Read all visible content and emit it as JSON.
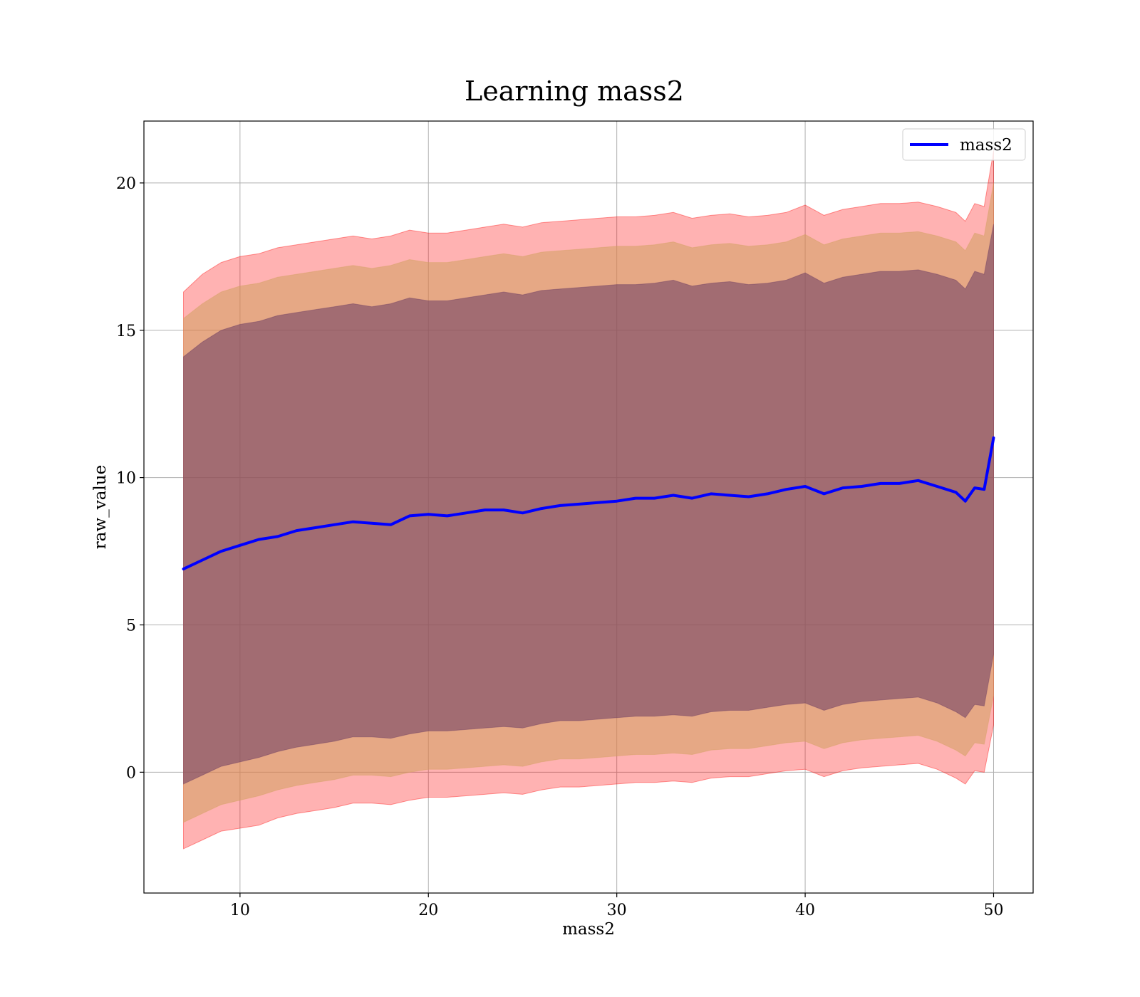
{
  "chart_data": {
    "type": "line",
    "title": "Learning mass2",
    "xlabel": "mass2",
    "ylabel": "raw_value",
    "xlim": [
      4.9,
      52.1
    ],
    "ylim": [
      -4.1,
      22.1
    ],
    "xticks": [
      10,
      20,
      30,
      40,
      50
    ],
    "yticks": [
      0,
      5,
      10,
      15,
      20
    ],
    "grid": true,
    "legend_position": "top-right",
    "x": [
      7,
      8,
      9,
      10,
      11,
      12,
      13,
      14,
      15,
      16,
      17,
      18,
      19,
      20,
      21,
      22,
      23,
      24,
      25,
      26,
      27,
      28,
      29,
      30,
      31,
      32,
      33,
      34,
      35,
      36,
      37,
      38,
      39,
      40,
      41,
      42,
      43,
      44,
      45,
      46,
      47,
      48,
      48.5,
      49,
      49.5,
      50
    ],
    "series": [
      {
        "name": "mass2",
        "color": "#0000ff",
        "values": [
          6.9,
          7.2,
          7.5,
          7.7,
          7.9,
          8.0,
          8.2,
          8.3,
          8.4,
          8.5,
          8.45,
          8.4,
          8.7,
          8.75,
          8.7,
          8.8,
          8.9,
          8.9,
          8.8,
          8.95,
          9.05,
          9.1,
          9.15,
          9.2,
          9.3,
          9.3,
          9.4,
          9.3,
          9.45,
          9.4,
          9.35,
          9.45,
          9.6,
          9.7,
          9.45,
          9.65,
          9.7,
          9.8,
          9.8,
          9.9,
          9.7,
          9.5,
          9.2,
          9.65,
          9.6,
          11.35
        ]
      }
    ],
    "bands": [
      {
        "name": "band-outer",
        "color": "#ff0000",
        "opacity": 0.3,
        "upper": [
          16.3,
          16.9,
          17.3,
          17.5,
          17.6,
          17.8,
          17.9,
          18.0,
          18.1,
          18.2,
          18.1,
          18.2,
          18.4,
          18.3,
          18.3,
          18.4,
          18.5,
          18.6,
          18.5,
          18.65,
          18.7,
          18.75,
          18.8,
          18.85,
          18.85,
          18.9,
          19.0,
          18.8,
          18.9,
          18.95,
          18.85,
          18.9,
          19.0,
          19.25,
          18.9,
          19.1,
          19.2,
          19.3,
          19.3,
          19.35,
          19.2,
          19.0,
          18.7,
          19.3,
          19.2,
          21.1
        ],
        "lower": [
          -2.6,
          -2.3,
          -2.0,
          -1.9,
          -1.8,
          -1.55,
          -1.4,
          -1.3,
          -1.2,
          -1.05,
          -1.05,
          -1.1,
          -0.95,
          -0.85,
          -0.85,
          -0.8,
          -0.75,
          -0.7,
          -0.75,
          -0.6,
          -0.5,
          -0.5,
          -0.45,
          -0.4,
          -0.35,
          -0.35,
          -0.3,
          -0.35,
          -0.2,
          -0.15,
          -0.15,
          -0.05,
          0.05,
          0.1,
          -0.15,
          0.05,
          0.15,
          0.2,
          0.25,
          0.3,
          0.1,
          -0.2,
          -0.4,
          0.05,
          0.0,
          1.6
        ]
      },
      {
        "name": "band-middle",
        "color": "#d2a060",
        "opacity": 0.55,
        "upper": [
          15.4,
          15.9,
          16.3,
          16.5,
          16.6,
          16.8,
          16.9,
          17.0,
          17.1,
          17.2,
          17.1,
          17.2,
          17.4,
          17.3,
          17.3,
          17.4,
          17.5,
          17.6,
          17.5,
          17.65,
          17.7,
          17.75,
          17.8,
          17.85,
          17.85,
          17.9,
          18.0,
          17.8,
          17.9,
          17.95,
          17.85,
          17.9,
          18.0,
          18.25,
          17.9,
          18.1,
          18.2,
          18.3,
          18.3,
          18.35,
          18.2,
          18.0,
          17.7,
          18.3,
          18.2,
          20.0
        ],
        "lower": [
          -1.7,
          -1.4,
          -1.1,
          -0.95,
          -0.8,
          -0.6,
          -0.45,
          -0.35,
          -0.25,
          -0.1,
          -0.1,
          -0.15,
          0.0,
          0.1,
          0.1,
          0.15,
          0.2,
          0.25,
          0.2,
          0.35,
          0.45,
          0.45,
          0.5,
          0.55,
          0.6,
          0.6,
          0.65,
          0.6,
          0.75,
          0.8,
          0.8,
          0.9,
          1.0,
          1.05,
          0.8,
          1.0,
          1.1,
          1.15,
          1.2,
          1.25,
          1.05,
          0.75,
          0.55,
          1.0,
          0.95,
          2.6
        ]
      },
      {
        "name": "band-inner",
        "color": "#6a3a62",
        "opacity": 0.55,
        "upper": [
          14.1,
          14.6,
          15.0,
          15.2,
          15.3,
          15.5,
          15.6,
          15.7,
          15.8,
          15.9,
          15.8,
          15.9,
          16.1,
          16.0,
          16.0,
          16.1,
          16.2,
          16.3,
          16.2,
          16.35,
          16.4,
          16.45,
          16.5,
          16.55,
          16.55,
          16.6,
          16.7,
          16.5,
          16.6,
          16.65,
          16.55,
          16.6,
          16.7,
          16.95,
          16.6,
          16.8,
          16.9,
          17.0,
          17.0,
          17.05,
          16.9,
          16.7,
          16.4,
          17.0,
          16.9,
          18.6
        ],
        "lower": [
          -0.4,
          -0.1,
          0.2,
          0.35,
          0.5,
          0.7,
          0.85,
          0.95,
          1.05,
          1.2,
          1.2,
          1.15,
          1.3,
          1.4,
          1.4,
          1.45,
          1.5,
          1.55,
          1.5,
          1.65,
          1.75,
          1.75,
          1.8,
          1.85,
          1.9,
          1.9,
          1.95,
          1.9,
          2.05,
          2.1,
          2.1,
          2.2,
          2.3,
          2.35,
          2.1,
          2.3,
          2.4,
          2.45,
          2.5,
          2.55,
          2.35,
          2.05,
          1.85,
          2.3,
          2.25,
          4.0
        ]
      }
    ]
  }
}
